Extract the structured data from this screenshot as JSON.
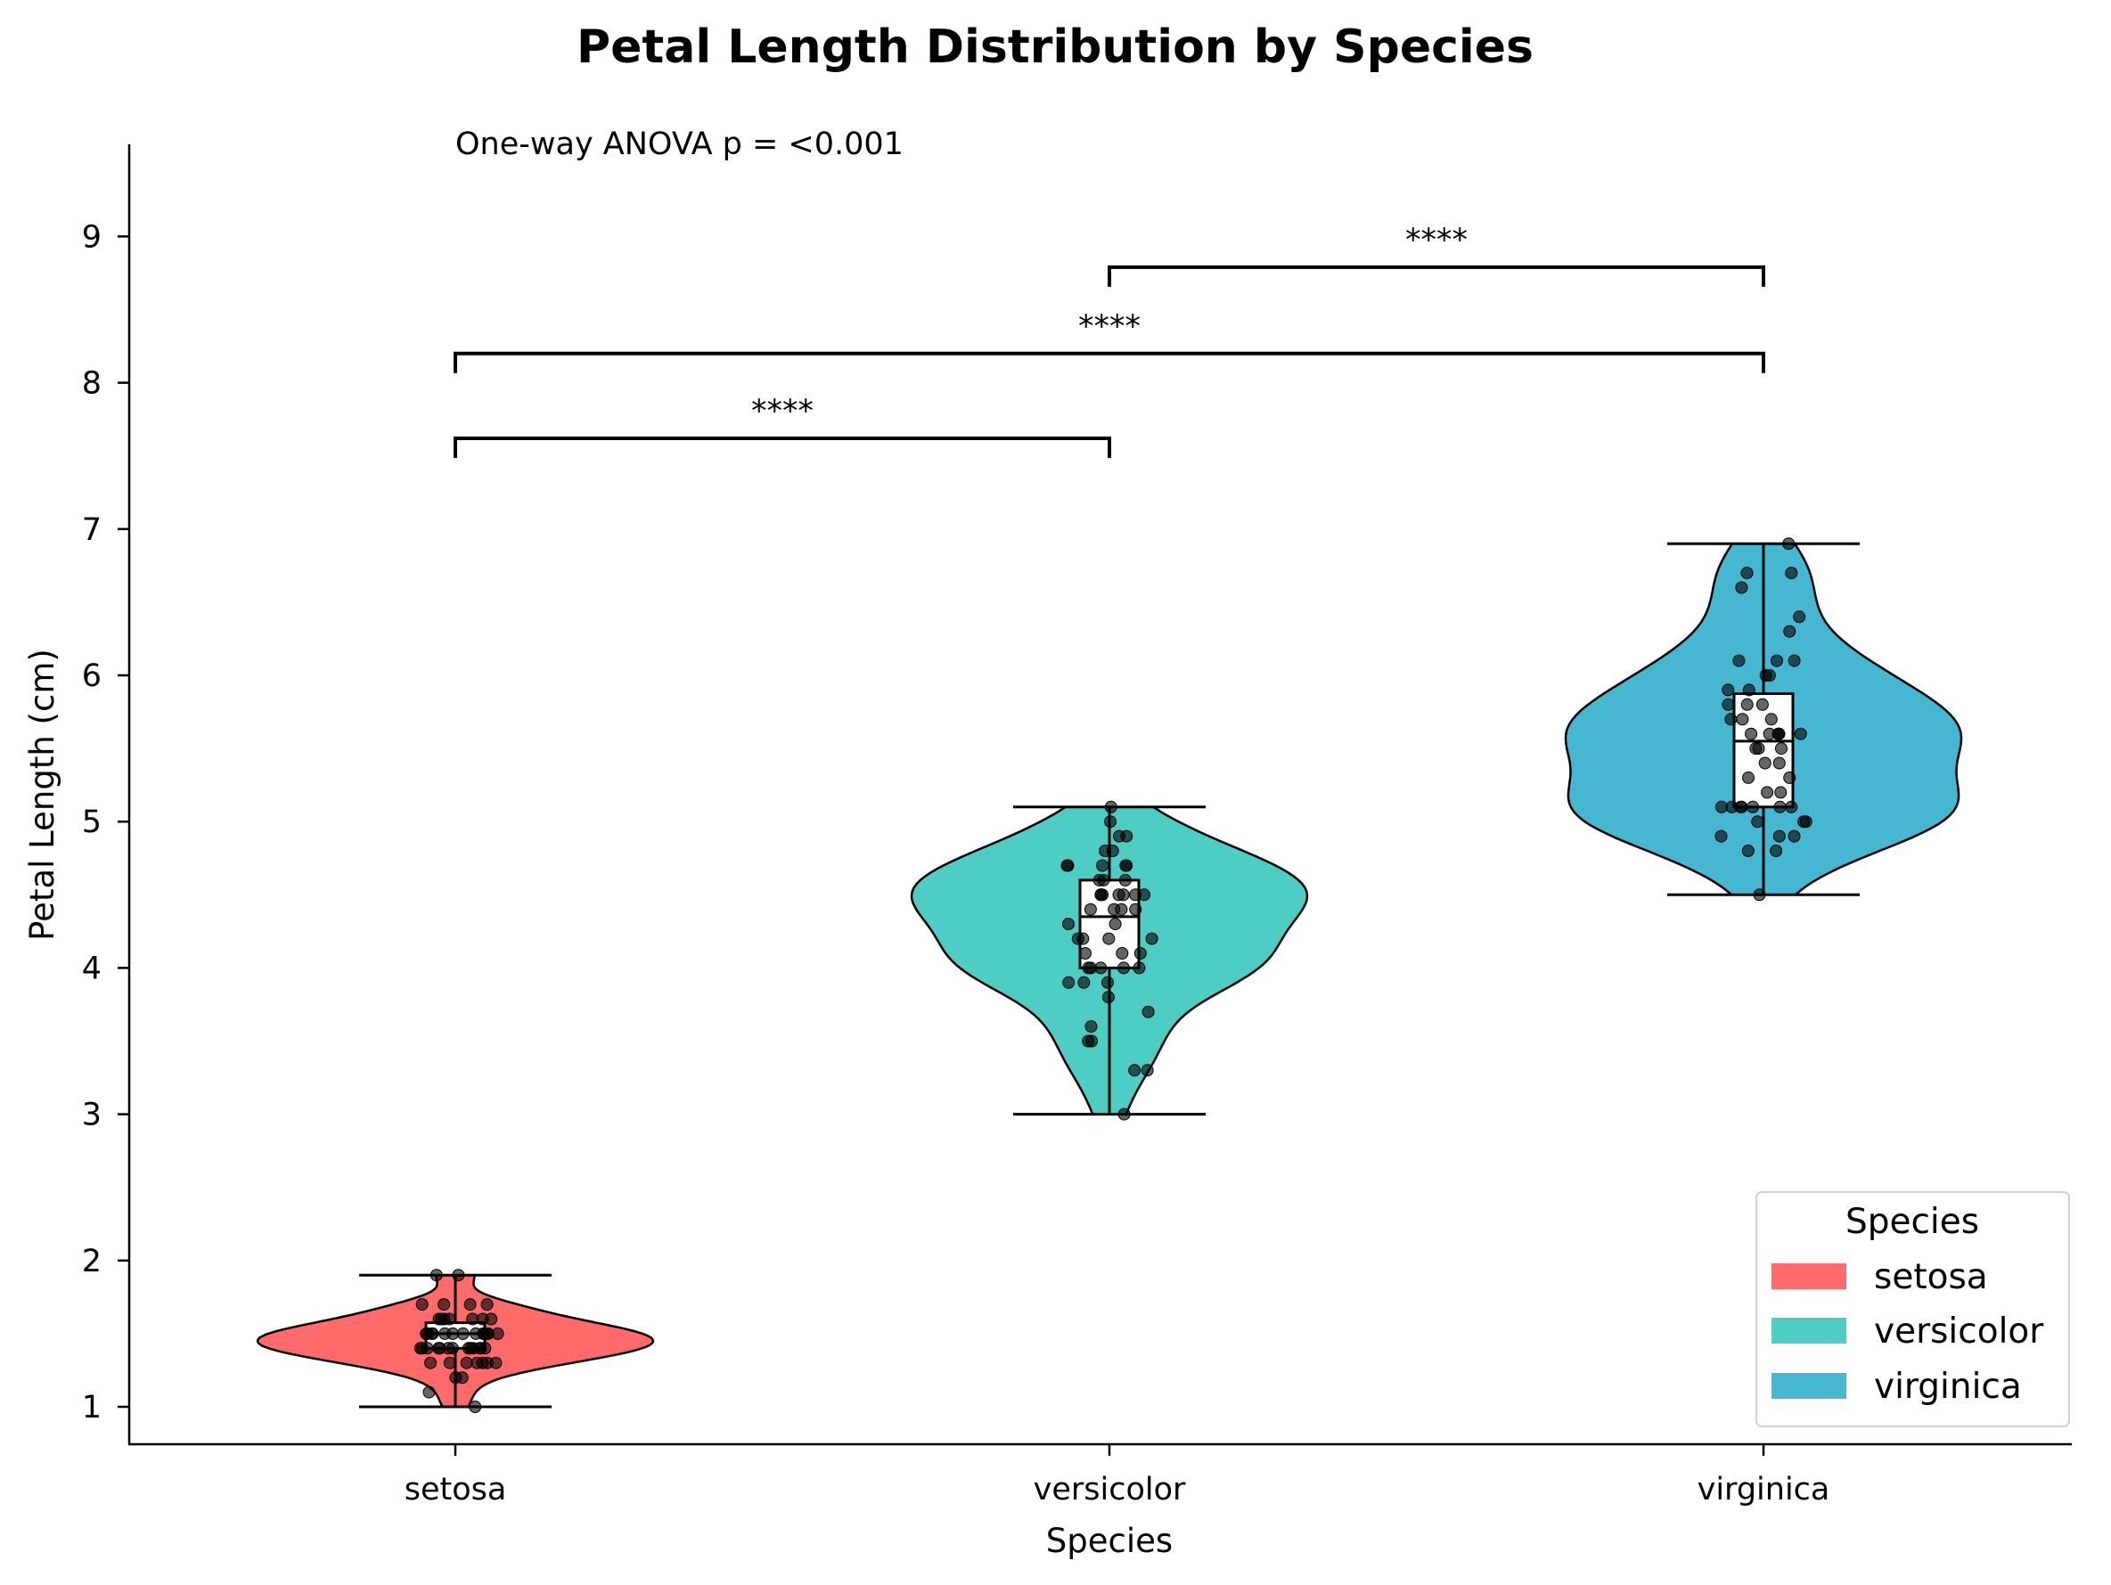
{
  "chart_data": {
    "type": "violin",
    "title": "Petal Length Distribution by Species",
    "xlabel": "Species",
    "ylabel": "Petal Length (cm)",
    "categories": [
      "setosa",
      "versicolor",
      "virginica"
    ],
    "ylim": [
      0.7,
      9.6
    ],
    "yticks": [
      "1",
      "2",
      "3",
      "4",
      "5",
      "6",
      "7",
      "8",
      "9"
    ],
    "grid": false,
    "annotation": "One-way ANOVA p = <0.001",
    "legend": {
      "title": "Species",
      "placement": "bottom-right",
      "entries": [
        "setosa",
        "versicolor",
        "virginica"
      ]
    },
    "series": [
      {
        "name": "setosa",
        "color": "#ff6b6b",
        "min": 1.0,
        "q1": 1.4,
        "median": 1.5,
        "q3": 1.575,
        "max": 1.9,
        "points": [
          1.4,
          1.4,
          1.3,
          1.5,
          1.4,
          1.7,
          1.4,
          1.5,
          1.4,
          1.5,
          1.5,
          1.6,
          1.4,
          1.1,
          1.2,
          1.5,
          1.3,
          1.4,
          1.7,
          1.5,
          1.7,
          1.5,
          1.0,
          1.7,
          1.9,
          1.6,
          1.6,
          1.5,
          1.4,
          1.6,
          1.6,
          1.5,
          1.5,
          1.4,
          1.5,
          1.2,
          1.3,
          1.4,
          1.3,
          1.5,
          1.3,
          1.3,
          1.3,
          1.6,
          1.9,
          1.4,
          1.6,
          1.4,
          1.5,
          1.4
        ]
      },
      {
        "name": "versicolor",
        "color": "#4ecdc4",
        "min": 3.0,
        "q1": 4.0,
        "median": 4.35,
        "q3": 4.6,
        "max": 5.1,
        "points": [
          4.7,
          4.5,
          4.9,
          4.0,
          4.6,
          4.5,
          4.7,
          3.3,
          4.6,
          3.9,
          3.5,
          4.2,
          4.0,
          4.7,
          3.6,
          4.4,
          4.5,
          4.1,
          4.5,
          3.9,
          4.8,
          4.0,
          4.9,
          4.7,
          4.3,
          4.4,
          4.8,
          5.0,
          4.5,
          3.5,
          3.8,
          3.7,
          3.9,
          5.1,
          4.5,
          4.5,
          4.7,
          4.4,
          4.1,
          4.0,
          4.4,
          4.6,
          4.0,
          3.3,
          4.2,
          4.2,
          4.2,
          4.3,
          3.0,
          4.1
        ]
      },
      {
        "name": "virginica",
        "color": "#45b7d1",
        "min": 4.5,
        "q1": 5.1,
        "median": 5.55,
        "q3": 5.875,
        "max": 6.9,
        "points": [
          6.0,
          5.1,
          5.9,
          5.6,
          5.8,
          6.6,
          4.5,
          6.3,
          5.8,
          6.1,
          5.1,
          5.3,
          5.5,
          5.0,
          5.1,
          5.3,
          5.5,
          6.7,
          6.9,
          5.0,
          5.7,
          4.9,
          6.7,
          4.9,
          5.7,
          6.0,
          4.8,
          4.9,
          5.6,
          5.8,
          6.1,
          6.4,
          5.6,
          5.1,
          5.6,
          6.1,
          5.6,
          5.5,
          4.8,
          5.4,
          5.6,
          5.1,
          5.1,
          5.9,
          5.7,
          5.2,
          5.0,
          5.2,
          5.4,
          5.1
        ]
      }
    ],
    "comparisons": [
      {
        "from": "setosa",
        "to": "versicolor",
        "label": "****",
        "level": 7.62
      },
      {
        "from": "setosa",
        "to": "virginica",
        "label": "****",
        "level": 8.2
      },
      {
        "from": "versicolor",
        "to": "virginica",
        "label": "****",
        "level": 8.79
      }
    ]
  }
}
